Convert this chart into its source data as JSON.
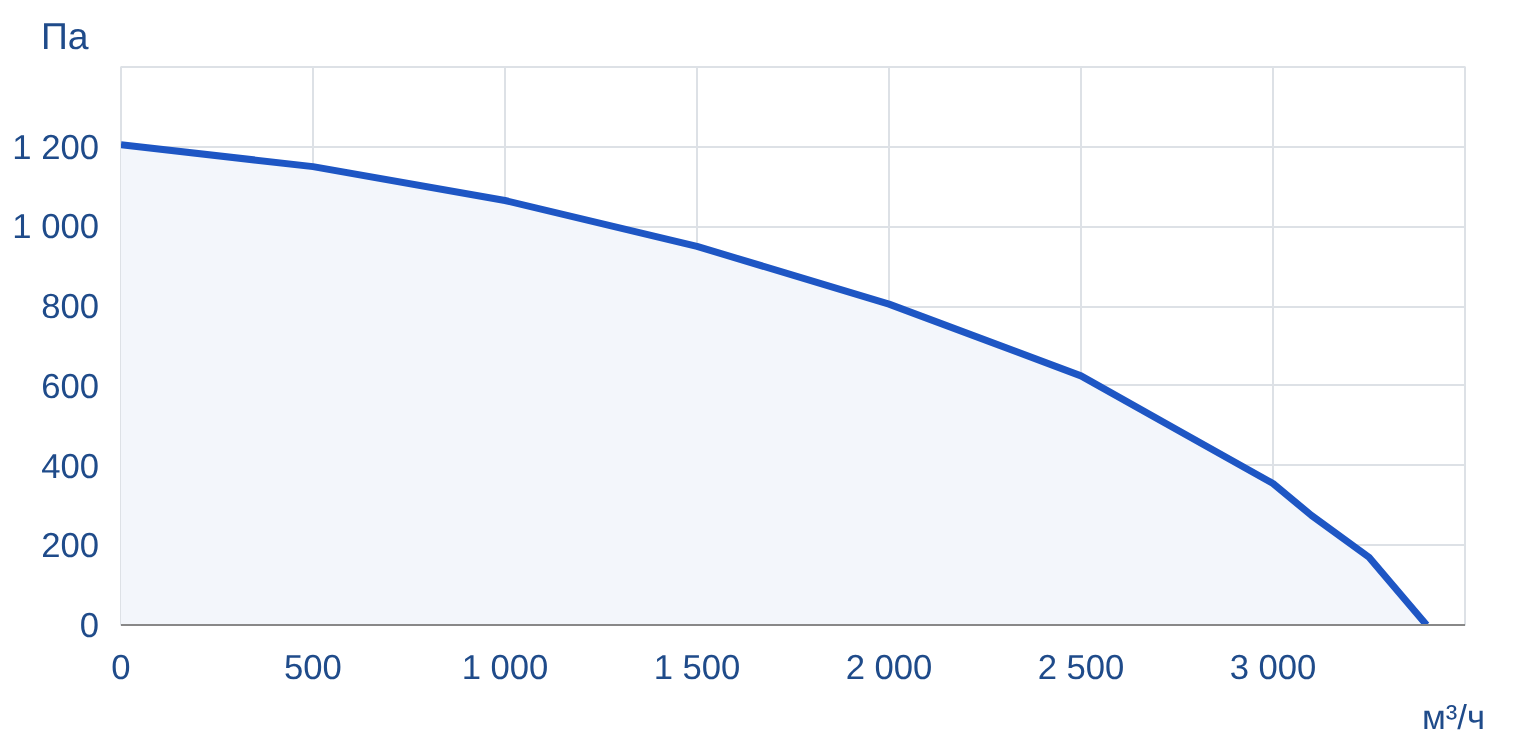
{
  "chart_data": {
    "type": "area",
    "xlabel": "м³/ч",
    "ylabel": "Па",
    "x": [
      0,
      500,
      1000,
      1500,
      2000,
      2500,
      2750,
      3000,
      3100,
      3250,
      3400
    ],
    "series": [
      {
        "color": "#1e56c4",
        "values": [
          1205,
          1150,
          1065,
          950,
          805,
          625,
          490,
          355,
          275,
          170,
          0
        ]
      }
    ],
    "xlim": [
      0,
      3500
    ],
    "ylim": [
      0,
      1400
    ],
    "xticks": [
      0,
      500,
      {
        "value": 1000,
        "label": "1 000"
      },
      {
        "value": 1500,
        "label": "1 500"
      },
      {
        "value": 2000,
        "label": "2 000"
      },
      {
        "value": 2500,
        "label": "2 500"
      },
      {
        "value": 3000,
        "label": "3 000"
      }
    ],
    "yticks": [
      0,
      200,
      400,
      600,
      800,
      {
        "value": 1000,
        "label": "1 000"
      },
      {
        "value": 1200,
        "label": "1 200"
      }
    ],
    "grid": true
  }
}
